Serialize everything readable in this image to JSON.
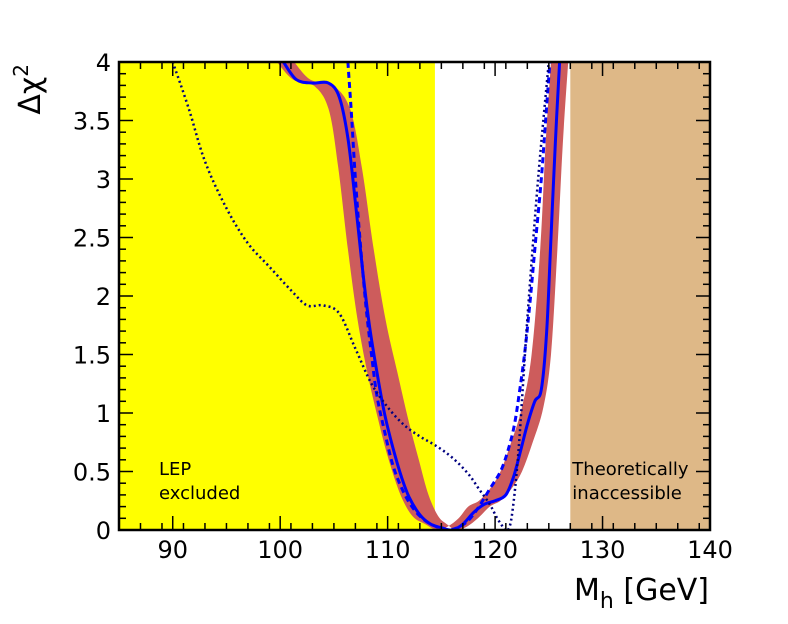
{
  "chart_data": {
    "type": "line",
    "title": "",
    "xlabel": {
      "main": "M",
      "sub": "h",
      "unit": " [GeV]"
    },
    "ylabel": {
      "main": "Δχ",
      "sup": "2"
    },
    "xlim": [
      85,
      140
    ],
    "ylim": [
      0,
      4
    ],
    "xticks": [
      90,
      100,
      110,
      120,
      130,
      140
    ],
    "yticks": [
      0,
      0.5,
      1,
      1.5,
      2,
      2.5,
      3,
      3.5,
      4
    ],
    "xtick_labels": [
      "90",
      "100",
      "110",
      "120",
      "130",
      "140"
    ],
    "ytick_labels": [
      "0",
      "0.5",
      "1",
      "1.5",
      "2",
      "2.5",
      "3",
      "3.5",
      "4"
    ],
    "regions": [
      {
        "name": "LEP excluded",
        "x": [
          85,
          114.4
        ],
        "color": "#ffff00",
        "label_lines": [
          "LEP",
          "excluded"
        ]
      },
      {
        "name": "Theoretically inaccessible",
        "x": [
          127,
          140
        ],
        "color": "#deb887",
        "label_lines": [
          "Theoretically",
          "inaccessible"
        ]
      }
    ],
    "series": [
      {
        "name": "band",
        "style": "band",
        "color": "#cd5c5c",
        "x": [
          100.5,
          102,
          104,
          105.5,
          106.5,
          107.5,
          108.5,
          109.5,
          110.5,
          111.5,
          112.5,
          113.5,
          114.5,
          115.5,
          116.5,
          117.5,
          118.5,
          119.5,
          120.5,
          121.5,
          122.5,
          123.5,
          124.3,
          125,
          125.5,
          126
        ],
        "y": [
          4,
          3.85,
          3.8,
          3.6,
          3.1,
          2.4,
          1.8,
          1.35,
          0.95,
          0.6,
          0.3,
          0.12,
          0.05,
          0.0,
          0.03,
          0.1,
          0.2,
          0.25,
          0.35,
          0.5,
          0.75,
          1.05,
          1.5,
          2.4,
          3.3,
          4
        ],
        "half_width": [
          0.8,
          0.8,
          0.9,
          1.0,
          1.1,
          1.2,
          1.3,
          1.4,
          1.4,
          1.4,
          1.3,
          1.2,
          1.0,
          0.9,
          0.9,
          0.9,
          1.0,
          1.0,
          1.0,
          1.0,
          1.0,
          1.0,
          0.9,
          0.8,
          0.8,
          0.8
        ]
      },
      {
        "name": "central",
        "style": "solid",
        "color": "#0000ff",
        "x": [
          100.3,
          101.5,
          103,
          104.5,
          105.5,
          106.3,
          107,
          107.7,
          108.3,
          109,
          109.7,
          110.5,
          111.3,
          112,
          113,
          114,
          115,
          116,
          117,
          118,
          119,
          120,
          121,
          121.7,
          122.3,
          123,
          123.7,
          124.3,
          124.8,
          125.2,
          125.6,
          126
        ],
        "y": [
          4,
          3.85,
          3.82,
          3.82,
          3.7,
          3.35,
          2.8,
          2.2,
          1.75,
          1.35,
          1.0,
          0.7,
          0.45,
          0.28,
          0.13,
          0.05,
          0.02,
          0.0,
          0.05,
          0.15,
          0.22,
          0.25,
          0.3,
          0.45,
          0.65,
          0.9,
          1.1,
          1.2,
          1.7,
          2.5,
          3.3,
          4
        ]
      },
      {
        "name": "dashed",
        "style": "dashed",
        "color": "#0000ff",
        "x": [
          106.3,
          106.6,
          107,
          107.5,
          108,
          108.5,
          109,
          109.7,
          110.5,
          111.5,
          112.5,
          113.5,
          114.5,
          115.5,
          116.5,
          117.5,
          118.5,
          119.5,
          120.5,
          121.2,
          121.8,
          122.3,
          122.8,
          123.3,
          123.8,
          124.3,
          124.7,
          125.1
        ],
        "y": [
          4,
          3.6,
          3.0,
          2.4,
          1.9,
          1.5,
          1.15,
          0.85,
          0.55,
          0.32,
          0.17,
          0.08,
          0.03,
          0.0,
          0.02,
          0.08,
          0.2,
          0.35,
          0.5,
          0.68,
          0.9,
          1.2,
          1.55,
          2.0,
          2.5,
          3.0,
          3.5,
          4
        ]
      },
      {
        "name": "dotted",
        "style": "dotted",
        "color": "#000080",
        "x": [
          90,
          91.5,
          93,
          95,
          97,
          99,
          101,
          102.5,
          104,
          105.5,
          107,
          108.5,
          110,
          111.5,
          113,
          114.5,
          116,
          117.5,
          118.5,
          119.5,
          120.2,
          120.8,
          121.2,
          121.6,
          122.2,
          123,
          124,
          125
        ],
        "y": [
          4,
          3.6,
          3.15,
          2.75,
          2.45,
          2.25,
          2.05,
          1.92,
          1.92,
          1.85,
          1.55,
          1.25,
          1.05,
          0.9,
          0.8,
          0.72,
          0.62,
          0.48,
          0.35,
          0.22,
          0.1,
          0.02,
          0.0,
          0.15,
          0.7,
          1.8,
          3.0,
          4
        ]
      }
    ]
  }
}
